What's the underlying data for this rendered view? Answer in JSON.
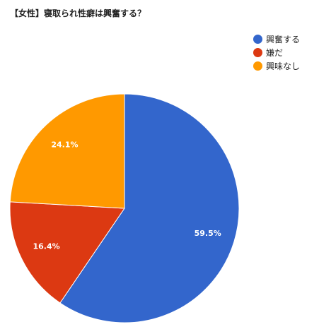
{
  "chart_data": {
    "type": "pie",
    "title": "【女性】寝取られ性癖は興奮する？",
    "slices": [
      {
        "label": "興奮する",
        "value": 59.5,
        "display": "59.5%",
        "color": "#3366CC"
      },
      {
        "label": "嫌だ",
        "value": 16.4,
        "display": "16.4%",
        "color": "#DC3912"
      },
      {
        "label": "興味なし",
        "value": 24.1,
        "display": "24.1%",
        "color": "#FF9900"
      }
    ],
    "legend_position": "top-right"
  }
}
